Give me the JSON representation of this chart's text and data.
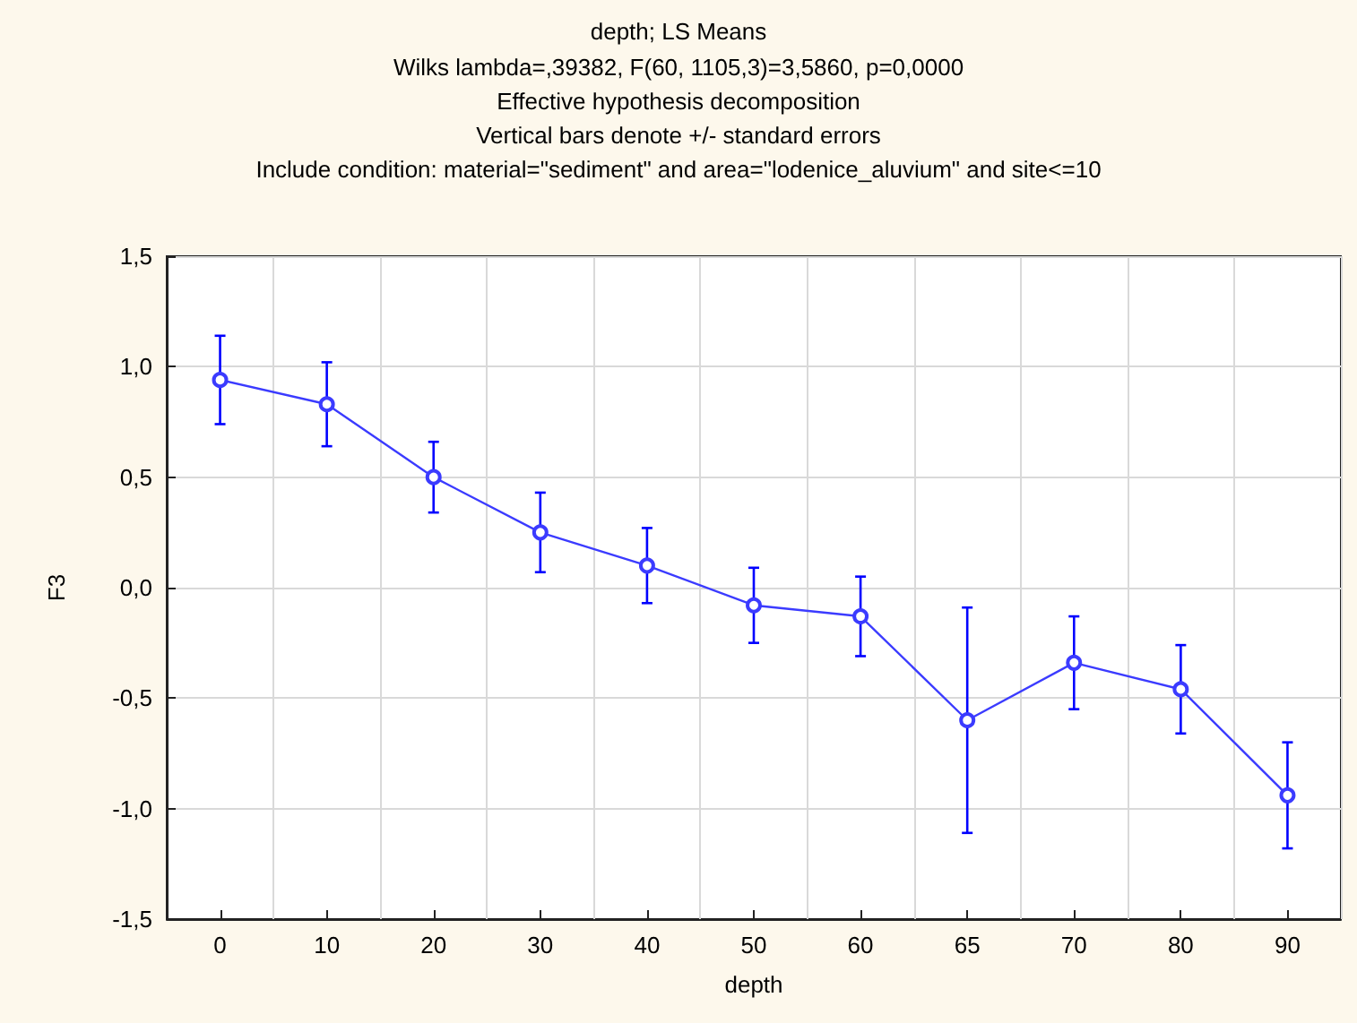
{
  "chart_data": {
    "type": "line",
    "title": "depth; LS Means",
    "subtitle": "Wilks lambda=,39382, F(60, 1105,3)=3,5860, p=0,0000\nEffective hypothesis decomposition\nVertical bars denote +/- standard errors\nInclude condition: material=\"sediment\" and area=\"lodenice_aluvium\" and site<=10",
    "xlabel": "depth",
    "ylabel": "F3",
    "categories": [
      "0",
      "10",
      "20",
      "30",
      "40",
      "50",
      "60",
      "65",
      "70",
      "80",
      "90"
    ],
    "series": [
      {
        "color": "#3b3bff",
        "values": [
          0.94,
          0.83,
          0.5,
          0.25,
          0.1,
          -0.08,
          -0.13,
          -0.6,
          -0.34,
          -0.46,
          -0.94
        ],
        "errors": [
          0.2,
          0.19,
          0.16,
          0.18,
          0.17,
          0.17,
          0.18,
          0.51,
          0.21,
          0.2,
          0.24
        ]
      }
    ],
    "ylim": [
      -1.5,
      1.5
    ],
    "yticks": [
      {
        "value": -1.5,
        "label": "-1,5"
      },
      {
        "value": -1,
        "label": "-1,0"
      },
      {
        "value": -0.5,
        "label": "-0,5"
      },
      {
        "value": 0,
        "label": "0,0"
      },
      {
        "value": 0.5,
        "label": "0,5"
      },
      {
        "value": 1,
        "label": "1,0"
      },
      {
        "value": 1.5,
        "label": "1,5"
      }
    ],
    "grid": true,
    "marker": "circle",
    "line_style": "solid"
  }
}
